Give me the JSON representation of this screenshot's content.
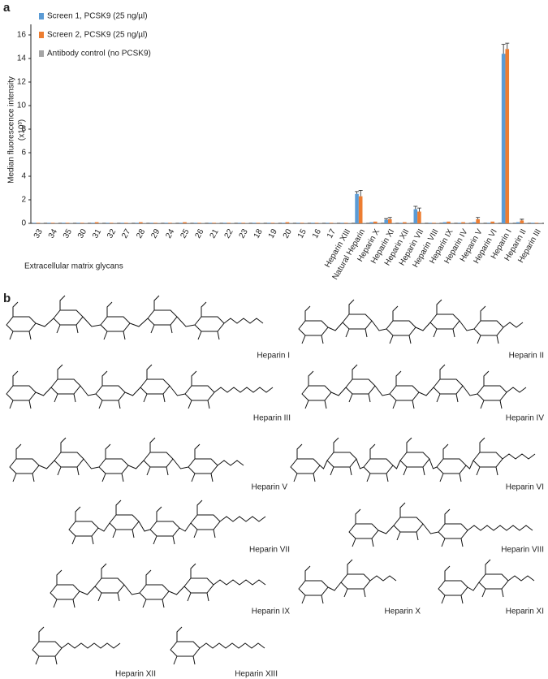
{
  "chart_data": {
    "type": "bar",
    "y_label": "Median fluorescence intensity",
    "y_label_unit": "(x10³)",
    "x_label": "Extracellular matrix glycans",
    "categories": [
      "33",
      "34",
      "35",
      "30",
      "31",
      "32",
      "27",
      "28",
      "29",
      "24",
      "25",
      "26",
      "21",
      "22",
      "23",
      "18",
      "19",
      "20",
      "15",
      "16",
      "17",
      "Heparin XIII",
      "Natural Heparin",
      "Heparin X",
      "Heparin XI",
      "Heparin XII",
      "Heparin VII",
      "Heparin VIII",
      "Heparin IX",
      "Heparin IV",
      "Heparin V",
      "Heparin VI",
      "Heparin I",
      "Heparin II",
      "Heparin III"
    ],
    "ylim": [
      0,
      16
    ],
    "yticks": [
      0,
      2,
      4,
      6,
      8,
      10,
      12,
      14,
      16
    ],
    "legend": "top-left",
    "series": [
      {
        "name": "Screen 1, PCSK9 (25 ng/µl)",
        "color": "#5b9bd5",
        "values": [
          0.05,
          0.05,
          0.05,
          0.05,
          0.05,
          0.05,
          0.05,
          0.05,
          0.05,
          0.05,
          0.05,
          0.05,
          0.05,
          0.05,
          0.05,
          0.05,
          0.05,
          0.05,
          0.05,
          0.05,
          0.05,
          0.05,
          2.5,
          0.1,
          0.3,
          0.05,
          1.2,
          0.05,
          0.1,
          0.05,
          0.1,
          0.05,
          14.4,
          0.1,
          0.05
        ],
        "errors": [
          null,
          null,
          null,
          null,
          null,
          null,
          null,
          null,
          null,
          null,
          null,
          null,
          null,
          null,
          null,
          null,
          null,
          null,
          null,
          null,
          null,
          null,
          0.2,
          null,
          0.1,
          null,
          0.25,
          null,
          null,
          null,
          null,
          null,
          0.8,
          null,
          null
        ]
      },
      {
        "name": "Screen 2, PCSK9 (25 ng/µl)",
        "color": "#ed7d31",
        "values": [
          0.05,
          0.05,
          0.05,
          0.05,
          0.1,
          0.05,
          0.05,
          0.1,
          0.05,
          0.05,
          0.1,
          0.05,
          0.05,
          0.05,
          0.05,
          0.05,
          0.05,
          0.1,
          0.05,
          0.05,
          0.05,
          0.05,
          2.3,
          0.15,
          0.35,
          0.1,
          1.0,
          0.05,
          0.15,
          0.1,
          0.35,
          0.15,
          14.8,
          0.25,
          0.05
        ],
        "errors": [
          null,
          null,
          null,
          null,
          null,
          null,
          null,
          null,
          null,
          null,
          null,
          null,
          null,
          null,
          null,
          null,
          null,
          null,
          null,
          null,
          null,
          null,
          0.5,
          null,
          0.15,
          null,
          0.3,
          null,
          null,
          null,
          0.15,
          null,
          0.5,
          0.1,
          null
        ]
      },
      {
        "name": "Antibody control (no PCSK9)",
        "color": "#a5a5a5",
        "values": [
          0.03,
          0.03,
          0.03,
          0.03,
          0.03,
          0.03,
          0.03,
          0.03,
          0.03,
          0.03,
          0.03,
          0.03,
          0.03,
          0.03,
          0.03,
          0.03,
          0.03,
          0.03,
          0.03,
          0.03,
          0.03,
          0.03,
          0.03,
          0.03,
          0.03,
          0.03,
          0.03,
          0.03,
          0.03,
          0.03,
          0.03,
          0.03,
          0.03,
          0.03,
          0.03
        ]
      }
    ]
  },
  "panel_labels": [
    "a",
    "b"
  ],
  "structures": [
    "Heparin I",
    "Heparin II",
    "Heparin III",
    "Heparin IV",
    "Heparin V",
    "Heparin VI",
    "Heparin VII",
    "Heparin VIII",
    "Heparin IX",
    "Heparin X",
    "Heparin XI",
    "Heparin XII",
    "Heparin XIII"
  ]
}
